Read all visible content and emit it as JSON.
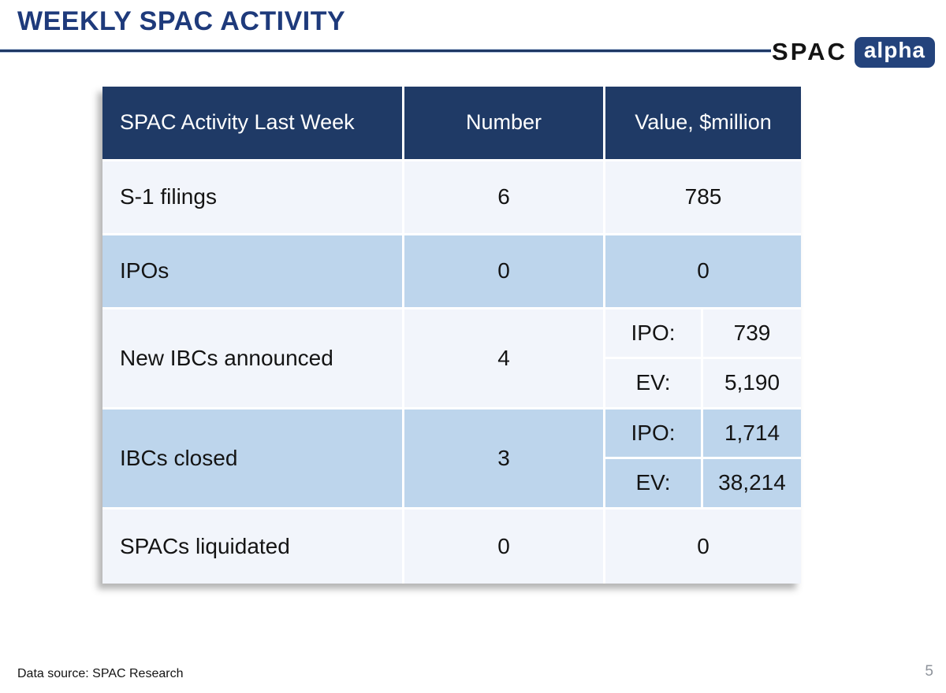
{
  "slide": {
    "title": "WEEKLY SPAC ACTIVITY"
  },
  "logo": {
    "spac": "SPAC",
    "alpha": "alpha"
  },
  "colors": {
    "header_bg": "#1f3a66",
    "row_light": "#f2f5fb",
    "row_blue": "#bdd5ec",
    "title_text": "#1e3a7b",
    "accent_line": "#1f3864",
    "badge_bg": "#24437c"
  },
  "table": {
    "headers": [
      "SPAC Activity Last Week",
      "Number",
      "Value, $million"
    ],
    "rows": [
      {
        "label": "S-1 filings",
        "number": "6",
        "value": "785"
      },
      {
        "label": "IPOs",
        "number": "0",
        "value": "0"
      },
      {
        "label": "New IBCs announced",
        "number": "4",
        "ipo_label": "IPO:",
        "ipo": "739",
        "ev_label": "EV:",
        "ev": "5,190"
      },
      {
        "label": "IBCs closed",
        "number": "3",
        "ipo_label": "IPO:",
        "ipo": "1,714",
        "ev_label": "EV:",
        "ev": "38,214"
      },
      {
        "label": "SPACs liquidated",
        "number": "0",
        "value": "0"
      }
    ]
  },
  "chart_data": {
    "type": "table",
    "title": "SPAC Activity Last Week",
    "columns": [
      "SPAC Activity Last Week",
      "Number",
      "Value, $million"
    ],
    "rows": [
      [
        "S-1 filings",
        6,
        785
      ],
      [
        "IPOs",
        0,
        0
      ],
      [
        "New IBCs announced",
        4,
        {
          "IPO": 739,
          "EV": 5190
        }
      ],
      [
        "IBCs closed",
        3,
        {
          "IPO": 1714,
          "EV": 38214
        }
      ],
      [
        "SPACs liquidated",
        0,
        0
      ]
    ]
  },
  "footer": {
    "source": "Data source: SPAC Research",
    "page": "5"
  }
}
